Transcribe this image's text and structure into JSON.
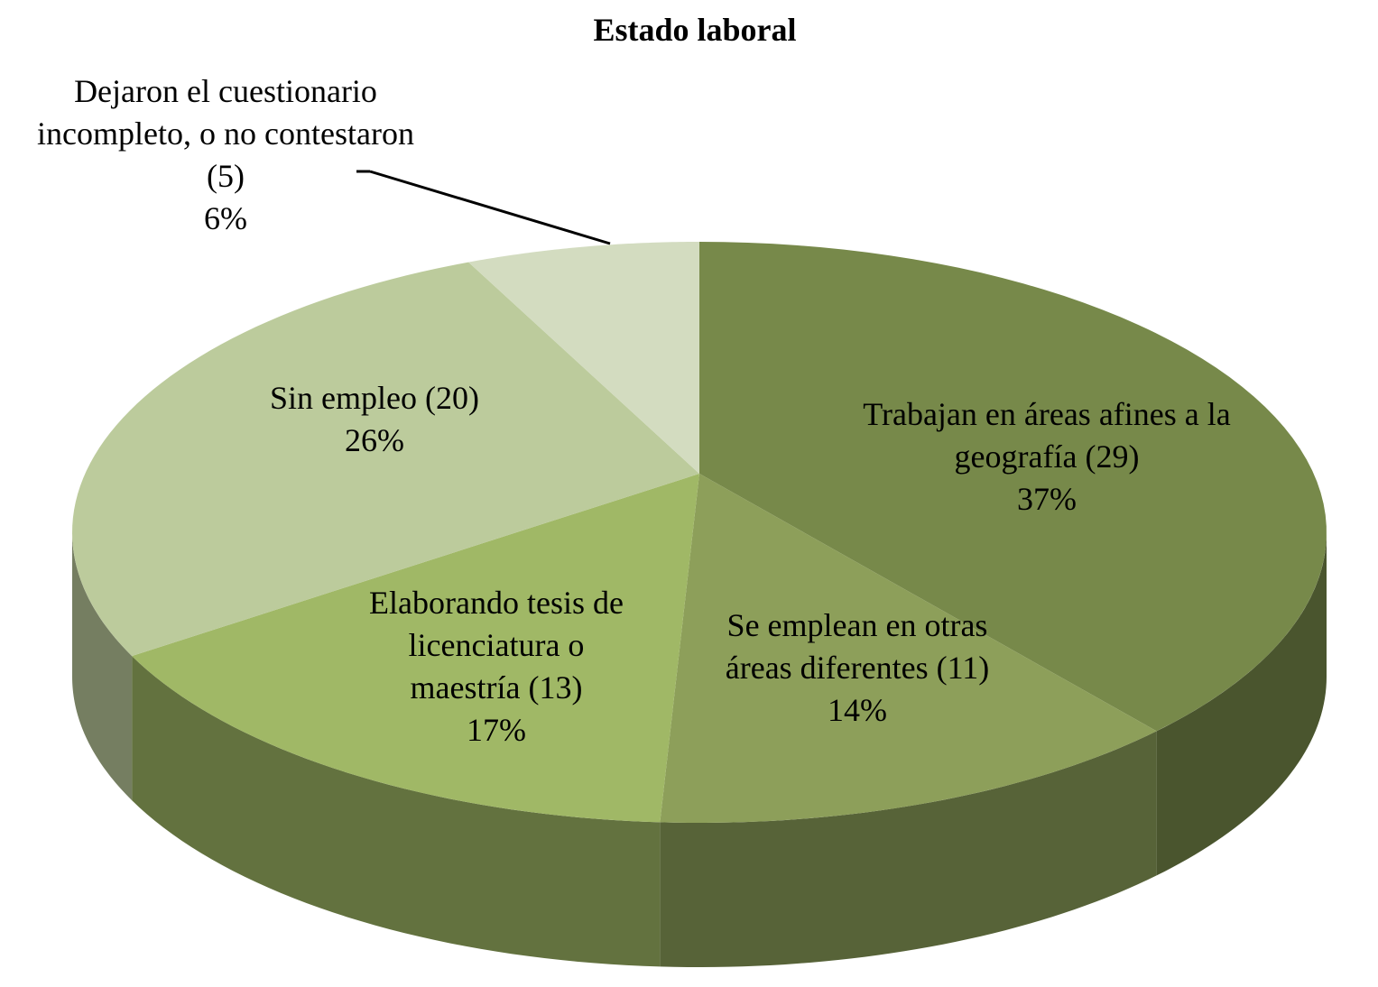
{
  "chart_data": {
    "type": "pie",
    "title": "Estado laboral",
    "categories": [
      "Trabajan en áreas afines a la geografía (29)",
      "Se emplean en otras áreas diferentes (11)",
      "Elaborando tesis de licenciatura o maestría (13)",
      "Sin empleo (20)",
      "Dejaron el cuestionario incompleto, o no contestaron (5)"
    ],
    "values": [
      37,
      14,
      17,
      26,
      6
    ],
    "value_labels": [
      "37%",
      "14%",
      "17%",
      "26%",
      "6%"
    ],
    "colors": [
      "#77894a",
      "#8d9f5a",
      "#a0b866",
      "#bccb9c",
      "#d3dcc0"
    ]
  }
}
